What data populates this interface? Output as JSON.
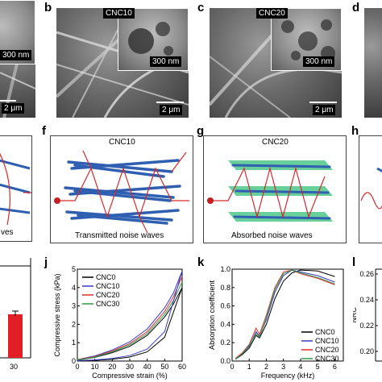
{
  "panels": {
    "b": "b",
    "c": "c",
    "d": "d",
    "f": "f",
    "g": "g",
    "h": "h",
    "j": "j",
    "k": "k",
    "l": "l"
  },
  "sem": {
    "a_inset_scale": "300 nm",
    "a_scale": "2 μm",
    "b_tag": "CNC10",
    "b_inset_scale": "300 nm",
    "b_scale": "2 μm",
    "c_tag": "CNC20",
    "c_inset_scale": "300 nm",
    "c_scale": "2 μm"
  },
  "schematics": {
    "e_caption": "ves",
    "f_title": "CNC10",
    "f_caption": "Transmitted noise waves",
    "g_title": "CNC20",
    "g_caption": "Absorbed noise waves",
    "fiber_color": "#2f5fb0",
    "wave_color": "#d42a2a",
    "sheet_color": "#36c07a"
  },
  "bar_panel": {
    "xtick": "30",
    "bar_color": "#e11f24"
  },
  "chart_data": [
    {
      "panel": "j",
      "type": "line",
      "xlabel": "Compressive strain (%)",
      "ylabel": "Compressive stress (kPa)",
      "xlim": [
        0,
        60
      ],
      "ylim": [
        0,
        5
      ],
      "xticks": [
        "0",
        "10",
        "20",
        "30",
        "40",
        "50",
        "60"
      ],
      "yticks": [
        "0",
        "1",
        "2",
        "3",
        "4",
        "5"
      ],
      "legend_position": "top-left",
      "series": [
        {
          "name": "CNC0",
          "color": "#000000",
          "x": [
            0,
            10,
            20,
            30,
            40,
            50,
            55,
            60
          ],
          "y": [
            0.05,
            0.2,
            0.45,
            0.8,
            1.4,
            2.4,
            3.1,
            4.0
          ]
        },
        {
          "name": "CNC10",
          "color": "#3b3bc4",
          "x": [
            0,
            10,
            20,
            30,
            40,
            50,
            55,
            60
          ],
          "y": [
            0.08,
            0.28,
            0.6,
            1.05,
            1.75,
            2.9,
            3.7,
            4.9
          ]
        },
        {
          "name": "CNC20",
          "color": "#e0302f",
          "x": [
            0,
            10,
            20,
            30,
            40,
            50,
            55,
            60
          ],
          "y": [
            0.07,
            0.25,
            0.55,
            0.95,
            1.6,
            2.7,
            3.5,
            4.6
          ]
        },
        {
          "name": "CNC30",
          "color": "#2a9a4a",
          "x": [
            0,
            10,
            20,
            30,
            40,
            50,
            55,
            60
          ],
          "y": [
            0.06,
            0.22,
            0.5,
            0.88,
            1.5,
            2.55,
            3.3,
            4.3
          ]
        }
      ],
      "unloading": [
        {
          "name": "CNC0",
          "x": [
            60,
            50,
            40,
            30,
            20,
            10,
            0
          ],
          "y": [
            4.0,
            1.3,
            0.5,
            0.22,
            0.1,
            0.04,
            0.02
          ]
        },
        {
          "name": "CNC10",
          "x": [
            60,
            50,
            40,
            30,
            20,
            10,
            0
          ],
          "y": [
            4.9,
            1.6,
            0.65,
            0.3,
            0.14,
            0.06,
            0.02
          ]
        }
      ]
    },
    {
      "panel": "k",
      "type": "line",
      "xlabel": "Frequency (kHz)",
      "ylabel": "Absorption coefficient",
      "xlim": [
        0,
        6.5
      ],
      "ylim": [
        0,
        1.0
      ],
      "xticks": [
        "0",
        "1",
        "2",
        "3",
        "4",
        "5",
        "6"
      ],
      "yticks": [
        "0.0",
        "0.2",
        "0.4",
        "0.6",
        "0.8",
        "1.0"
      ],
      "legend_position": "bottom-right",
      "series": [
        {
          "name": "CNC0",
          "color": "#000000",
          "x": [
            0.2,
            0.6,
            1.0,
            1.4,
            1.6,
            2.0,
            2.5,
            3.0,
            3.5,
            4.0,
            5.0,
            6.0
          ],
          "y": [
            0.02,
            0.07,
            0.14,
            0.28,
            0.25,
            0.4,
            0.68,
            0.87,
            0.96,
            0.99,
            0.98,
            0.92
          ]
        },
        {
          "name": "CNC10",
          "color": "#3b3bc4",
          "x": [
            0.2,
            0.6,
            1.0,
            1.4,
            1.6,
            2.0,
            2.5,
            3.0,
            3.5,
            4.0,
            5.0,
            6.0
          ],
          "y": [
            0.02,
            0.08,
            0.16,
            0.32,
            0.27,
            0.45,
            0.75,
            0.93,
            0.99,
            0.97,
            0.93,
            0.86
          ]
        },
        {
          "name": "CNC20",
          "color": "#e0302f",
          "x": [
            0.2,
            0.6,
            1.0,
            1.4,
            1.6,
            2.0,
            2.5,
            3.0,
            3.5,
            4.0,
            5.0,
            6.0
          ],
          "y": [
            0.03,
            0.09,
            0.18,
            0.36,
            0.29,
            0.5,
            0.8,
            0.97,
            0.99,
            0.95,
            0.9,
            0.83
          ]
        },
        {
          "name": "CNC30",
          "color": "#2a9a4a",
          "x": [
            0.2,
            0.6,
            1.0,
            1.4,
            1.6,
            2.0,
            2.5,
            3.0,
            3.5,
            4.0,
            5.0,
            6.0
          ],
          "y": [
            0.02,
            0.08,
            0.17,
            0.3,
            0.26,
            0.47,
            0.78,
            0.95,
            0.99,
            0.96,
            0.91,
            0.84
          ]
        }
      ]
    },
    {
      "panel": "l",
      "type": "bar",
      "ylabel": "NRC",
      "ylim": [
        0.2,
        0.26
      ],
      "yticks": [
        "0.20",
        "0.22",
        "0.24",
        "0.26"
      ],
      "categories": [],
      "values": []
    }
  ]
}
